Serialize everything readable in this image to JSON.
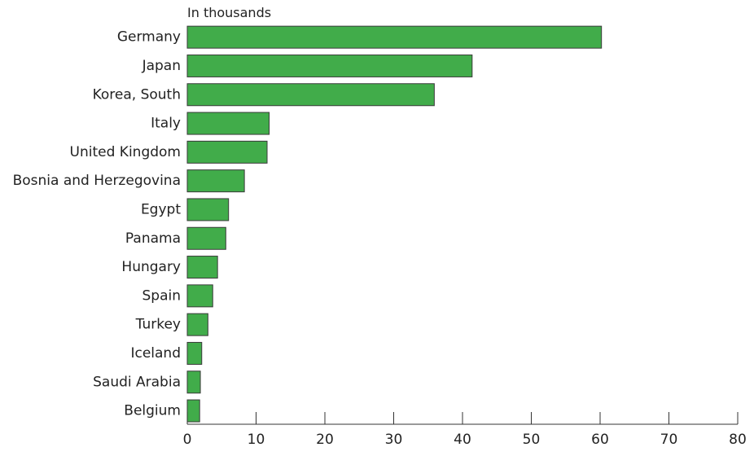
{
  "chart_data": {
    "type": "bar",
    "orientation": "horizontal",
    "unit_label": "In thousands",
    "categories": [
      "Germany",
      "Japan",
      "Korea, South",
      "Italy",
      "United Kingdom",
      "Bosnia and Herzegovina",
      "Egypt",
      "Panama",
      "Hungary",
      "Spain",
      "Turkey",
      "Iceland",
      "Saudi Arabia",
      "Belgium"
    ],
    "values": [
      60.2,
      41.4,
      35.9,
      11.9,
      11.6,
      8.3,
      6.0,
      5.6,
      4.4,
      3.7,
      3.0,
      2.1,
      1.9,
      1.8
    ],
    "xlim": [
      0,
      80
    ],
    "xticks": [
      0,
      10,
      20,
      30,
      40,
      50,
      60,
      70,
      80
    ],
    "xtick_labels": [
      "0",
      "10",
      "20",
      "30",
      "40",
      "50",
      "60",
      "70",
      "80"
    ],
    "grid": false,
    "bar_color": "#41ac4a",
    "bar_edge_color": "#3a3a3a"
  }
}
